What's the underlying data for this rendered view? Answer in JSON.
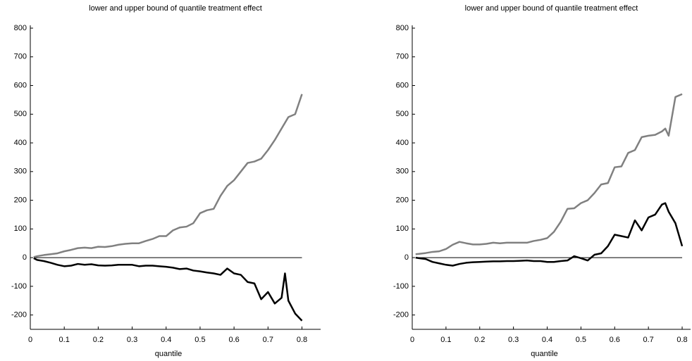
{
  "chart_data": [
    {
      "type": "line",
      "title": "lower and upper bound of quantile treatment effect",
      "xlabel": "quantile",
      "x": [
        0.01,
        0.02,
        0.04,
        0.06,
        0.08,
        0.1,
        0.12,
        0.14,
        0.16,
        0.18,
        0.2,
        0.22,
        0.24,
        0.26,
        0.28,
        0.3,
        0.32,
        0.34,
        0.36,
        0.38,
        0.4,
        0.42,
        0.44,
        0.46,
        0.48,
        0.5,
        0.52,
        0.54,
        0.56,
        0.58,
        0.6,
        0.62,
        0.64,
        0.66,
        0.68,
        0.7,
        0.72,
        0.74,
        0.75,
        0.76,
        0.78,
        0.8
      ],
      "series": [
        {
          "color": "#808080",
          "values": [
            2,
            5,
            9,
            12,
            15,
            22,
            27,
            33,
            35,
            33,
            38,
            37,
            40,
            45,
            48,
            50,
            50,
            58,
            65,
            75,
            75,
            95,
            105,
            108,
            120,
            155,
            165,
            170,
            215,
            250,
            270,
            300,
            330,
            335,
            345,
            375,
            410,
            450,
            470,
            490,
            500,
            570
          ]
        },
        {
          "color": "#000000",
          "values": [
            -2,
            -8,
            -12,
            -18,
            -25,
            -30,
            -28,
            -22,
            -25,
            -23,
            -27,
            -28,
            -27,
            -25,
            -25,
            -25,
            -30,
            -28,
            -28,
            -30,
            -32,
            -35,
            -40,
            -38,
            -45,
            -48,
            -52,
            -55,
            -60,
            -38,
            -55,
            -60,
            -85,
            -90,
            -145,
            -120,
            -160,
            -140,
            -55,
            -150,
            -195,
            -220
          ]
        }
      ],
      "hline": 0,
      "xlim": [
        0,
        0.855
      ],
      "xticks": [
        0,
        0.1,
        0.2,
        0.3,
        0.4,
        0.5,
        0.6,
        0.7,
        0.8
      ],
      "ylim": [
        -250,
        800
      ],
      "yticks": [
        -200,
        -100,
        0,
        100,
        200,
        300,
        400,
        500,
        600,
        700,
        800
      ]
    },
    {
      "type": "line",
      "title": "lower and upper bound of quantile treatment effect",
      "xlabel": "quantile",
      "x": [
        0.01,
        0.02,
        0.04,
        0.06,
        0.08,
        0.1,
        0.12,
        0.14,
        0.16,
        0.18,
        0.2,
        0.22,
        0.24,
        0.26,
        0.28,
        0.3,
        0.32,
        0.34,
        0.36,
        0.38,
        0.4,
        0.42,
        0.44,
        0.46,
        0.48,
        0.5,
        0.52,
        0.54,
        0.56,
        0.58,
        0.6,
        0.62,
        0.64,
        0.66,
        0.68,
        0.7,
        0.72,
        0.74,
        0.75,
        0.76,
        0.78,
        0.8
      ],
      "series": [
        {
          "color": "#808080",
          "values": [
            12,
            13,
            16,
            20,
            22,
            30,
            45,
            55,
            50,
            46,
            46,
            48,
            52,
            50,
            52,
            52,
            52,
            52,
            58,
            62,
            68,
            90,
            125,
            170,
            172,
            190,
            200,
            225,
            255,
            260,
            315,
            318,
            365,
            375,
            420,
            425,
            428,
            440,
            450,
            425,
            560,
            570
          ]
        },
        {
          "color": "#000000",
          "values": [
            0,
            -2,
            -5,
            -15,
            -20,
            -25,
            -28,
            -22,
            -18,
            -16,
            -15,
            -14,
            -13,
            -13,
            -12,
            -12,
            -11,
            -10,
            -12,
            -12,
            -15,
            -15,
            -12,
            -10,
            5,
            -2,
            -10,
            10,
            15,
            40,
            80,
            75,
            70,
            130,
            95,
            140,
            150,
            185,
            190,
            160,
            120,
            40
          ]
        }
      ],
      "hline": 0,
      "xlim": [
        0,
        0.825
      ],
      "xticks": [
        0,
        0.1,
        0.2,
        0.3,
        0.4,
        0.5,
        0.6,
        0.7,
        0.8
      ],
      "ylim": [
        -250,
        800
      ],
      "yticks": [
        -200,
        -100,
        0,
        100,
        200,
        300,
        400,
        500,
        600,
        700,
        800
      ]
    }
  ]
}
